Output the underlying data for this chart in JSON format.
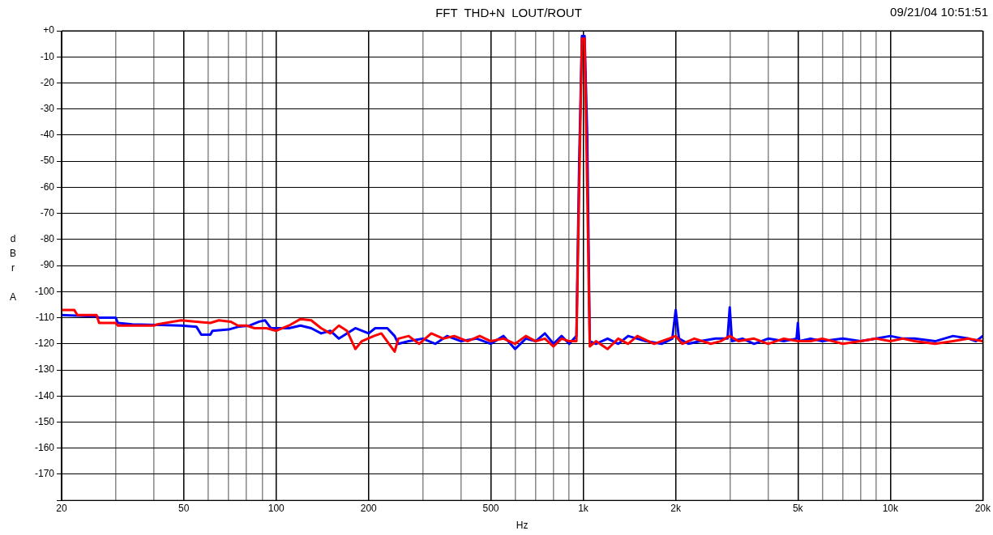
{
  "chart_data": {
    "type": "line",
    "title": "FFT  THD+N  LOUT/ROUT",
    "xlabel": "Hz",
    "ylabel": "dBr A",
    "annotations": [
      "09/21/04 10:51:51"
    ],
    "xlim": [
      20,
      20000
    ],
    "xticks": [
      {
        "value": 20,
        "label": "20"
      },
      {
        "value": 30,
        "label": null
      },
      {
        "value": 40,
        "label": null
      },
      {
        "value": 50,
        "label": "50"
      },
      {
        "value": 60,
        "label": null
      },
      {
        "value": 70,
        "label": null
      },
      {
        "value": 80,
        "label": null
      },
      {
        "value": 90,
        "label": null
      },
      {
        "value": 100,
        "label": "100"
      },
      {
        "value": 200,
        "label": "200"
      },
      {
        "value": 300,
        "label": null
      },
      {
        "value": 400,
        "label": null
      },
      {
        "value": 500,
        "label": "500"
      },
      {
        "value": 600,
        "label": null
      },
      {
        "value": 700,
        "label": null
      },
      {
        "value": 800,
        "label": null
      },
      {
        "value": 900,
        "label": null
      },
      {
        "value": 1000,
        "label": "1k"
      },
      {
        "value": 2000,
        "label": "2k"
      },
      {
        "value": 3000,
        "label": null
      },
      {
        "value": 4000,
        "label": null
      },
      {
        "value": 5000,
        "label": "5k"
      },
      {
        "value": 6000,
        "label": null
      },
      {
        "value": 7000,
        "label": null
      },
      {
        "value": 8000,
        "label": null
      },
      {
        "value": 9000,
        "label": null
      },
      {
        "value": 10000,
        "label": "10k"
      },
      {
        "value": 20000,
        "label": "20k"
      }
    ],
    "ylim": [
      -180,
      0
    ],
    "yticks": [
      {
        "value": 0,
        "label": "+0"
      },
      -10,
      -20,
      -30,
      -40,
      -50,
      -60,
      -70,
      -80,
      -90,
      -100,
      -110,
      -120,
      -130,
      -140,
      -150,
      -160,
      -170,
      {
        "value": -180,
        "label": null
      }
    ],
    "log": "x",
    "grid": true,
    "legend": false,
    "marker": "none",
    "line_style": "solid",
    "series": [
      {
        "color": "#ff0000",
        "x": [
          20,
          22,
          22.5,
          26,
          26.5,
          30,
          30.5,
          34,
          40,
          41,
          49,
          55,
          61,
          65,
          71,
          75,
          80,
          85,
          93,
          100,
          110,
          120,
          130,
          140,
          150,
          160,
          170,
          181,
          190,
          208,
          220,
          243,
          250,
          270,
          292,
          320,
          350,
          380,
          420,
          460,
          500,
          550,
          600,
          650,
          700,
          750,
          800,
          850,
          900,
          950,
          970,
          990,
          1010,
          1030,
          1050,
          1100,
          1200,
          1300,
          1400,
          1500,
          1700,
          1900,
          2000,
          2100,
          2300,
          2600,
          2800,
          3000,
          3200,
          3600,
          4000,
          4500,
          5000,
          5500,
          6000,
          7000,
          8000,
          9000,
          10000,
          11000,
          12000,
          14000,
          16000,
          18000,
          20000
        ],
        "values": [
          -107,
          -107,
          -109,
          -109,
          -112,
          -112,
          -113,
          -113,
          -113,
          -112.5,
          -111,
          -111.5,
          -112,
          -111,
          -111.5,
          -113,
          -113,
          -114,
          -114,
          -115,
          -113,
          -110.5,
          -111,
          -114,
          -116,
          -113,
          -115,
          -122,
          -119,
          -117,
          -116,
          -123,
          -118,
          -117,
          -120,
          -116,
          -118,
          -117,
          -119,
          -117,
          -119,
          -118,
          -120,
          -117,
          -119,
          -118,
          -121,
          -118,
          -119,
          -119,
          -60,
          -3,
          -3,
          -60,
          -121,
          -119,
          -122,
          -118,
          -120,
          -117,
          -120,
          -118,
          -117,
          -120,
          -118,
          -120,
          -119,
          -117,
          -119,
          -118,
          -120,
          -118,
          -119,
          -119,
          -118,
          -120,
          -119,
          -118,
          -119,
          -118,
          -119,
          -120,
          -119,
          -118,
          -119
        ]
      },
      {
        "color": "#0000ff",
        "x": [
          20,
          26,
          26.5,
          30,
          30.5,
          34,
          49,
          55,
          57,
          61,
          62,
          70,
          75,
          82,
          88,
          92,
          96,
          110,
          120,
          130,
          140,
          150,
          160,
          170,
          181,
          200,
          210,
          230,
          243,
          250,
          270,
          300,
          330,
          360,
          400,
          450,
          500,
          550,
          600,
          650,
          700,
          750,
          800,
          850,
          900,
          950,
          970,
          990,
          1010,
          1030,
          1050,
          1100,
          1200,
          1300,
          1400,
          1600,
          1800,
          1950,
          2000,
          2050,
          2200,
          2400,
          2700,
          2950,
          3000,
          3050,
          3300,
          3600,
          4000,
          4500,
          4950,
          5000,
          5050,
          5500,
          6000,
          7000,
          8000,
          9000,
          10000,
          11000,
          12000,
          14000,
          16000,
          18000,
          19000,
          20000
        ],
        "values": [
          -109,
          -109.5,
          -110,
          -110,
          -112,
          -112.5,
          -113,
          -113.5,
          -116.5,
          -116.5,
          -115,
          -114.5,
          -113.5,
          -113,
          -111.5,
          -111,
          -114,
          -114,
          -113,
          -114,
          -116,
          -115,
          -118,
          -116,
          -114,
          -116,
          -114,
          -114,
          -117,
          -120,
          -119,
          -118,
          -120,
          -117,
          -119,
          -118,
          -120,
          -117,
          -122,
          -118,
          -119,
          -116,
          -120,
          -117,
          -120,
          -117,
          -50,
          -2,
          -2,
          -40,
          -119,
          -120,
          -118,
          -120,
          -117,
          -119,
          -120,
          -118,
          -107,
          -118,
          -120,
          -119,
          -118,
          -118,
          -106,
          -119,
          -118,
          -120,
          -118,
          -119,
          -118,
          -112,
          -119,
          -118,
          -119,
          -118,
          -119,
          -118,
          -117,
          -118,
          -118,
          -119,
          -117,
          -118,
          -119,
          -117
        ]
      }
    ]
  }
}
